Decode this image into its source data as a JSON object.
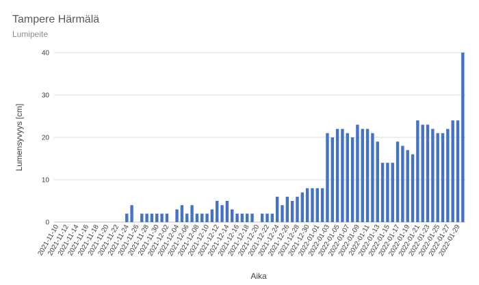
{
  "chart_data": {
    "type": "bar",
    "title": "Tampere Härmälä",
    "subtitle": "Lumipeite",
    "xlabel": "Aika",
    "ylabel": "Lumensyvyys [cm]",
    "ylim": [
      0,
      40
    ],
    "yticks": [
      0,
      10,
      20,
      30,
      40
    ],
    "grid": true,
    "legend": "none",
    "bar_color": "#4472c4",
    "categories": [
      "2021-11-10",
      "2021-11-11",
      "2021-11-12",
      "2021-11-13",
      "2021-11-14",
      "2021-11-15",
      "2021-11-16",
      "2021-11-17",
      "2021-11-18",
      "2021-11-19",
      "2021-11-20",
      "2021-11-21",
      "2021-11-22",
      "2021-11-23",
      "2021-11-24",
      "2021-11-25",
      "2021-11-26",
      "2021-11-27",
      "2021-11-28",
      "2021-11-29",
      "2021-11-30",
      "2021-12-01",
      "2021-12-02",
      "2021-12-03",
      "2021-12-04",
      "2021-12-05",
      "2021-12-06",
      "2021-12-07",
      "2021-12-08",
      "2021-12-09",
      "2021-12-10",
      "2021-12-11",
      "2021-12-12",
      "2021-12-13",
      "2021-12-14",
      "2021-12-15",
      "2021-12-16",
      "2021-12-17",
      "2021-12-18",
      "2021-12-19",
      "2021-12-20",
      "2021-12-21",
      "2021-12-22",
      "2021-12-23",
      "2021-12-24",
      "2021-12-25",
      "2021-12-26",
      "2021-12-27",
      "2021-12-28",
      "2021-12-29",
      "2021-12-30",
      "2021-12-31",
      "2022-01-01",
      "2022-01-02",
      "2022-01-03",
      "2022-01-04",
      "2022-01-05",
      "2022-01-06",
      "2022-01-07",
      "2022-01-08",
      "2022-01-09",
      "2022-01-10",
      "2022-01-11",
      "2022-01-12",
      "2022-01-13",
      "2022-01-14",
      "2022-01-15",
      "2022-01-16",
      "2022-01-17",
      "2022-01-18",
      "2022-01-19",
      "2022-01-20",
      "2022-01-21",
      "2022-01-22",
      "2022-01-23",
      "2022-01-24",
      "2022-01-25",
      "2022-01-26",
      "2022-01-27",
      "2022-01-28",
      "2022-01-29",
      "2022-01-30"
    ],
    "tick_labels": [
      "2021-11-10",
      "2021-11-12",
      "2021-11-14",
      "2021-11-16",
      "2021-11-18",
      "2021-11-20",
      "2021-11-22",
      "2021-11-24",
      "2021-11-26",
      "2021-11-28",
      "2021-11-30",
      "2021-12-02",
      "2021-12-04",
      "2021-12-06",
      "2021-12-08",
      "2021-12-10",
      "2021-12-12",
      "2021-12-14",
      "2021-12-16",
      "2021-12-18",
      "2021-12-20",
      "2021-12-22",
      "2021-12-24",
      "2021-12-26",
      "2021-12-28",
      "2021-12-30",
      "2022-01-01",
      "2022-01-03",
      "2022-01-05",
      "2022-01-07",
      "2022-01-09",
      "2022-01-11",
      "2022-01-13",
      "2022-01-15",
      "2022-01-17",
      "2022-01-19",
      "2022-01-21",
      "2022-01-23",
      "2022-01-25",
      "2022-01-27",
      "2022-01-29"
    ],
    "values": [
      0,
      0,
      0,
      0,
      0,
      0,
      0,
      0,
      0,
      0,
      0,
      0,
      0,
      0,
      2,
      4,
      0,
      2,
      2,
      2,
      2,
      2,
      2,
      0,
      3,
      4,
      2,
      4,
      2,
      2,
      2,
      3,
      5,
      4,
      5,
      3,
      2,
      2,
      2,
      2,
      0,
      2,
      2,
      2,
      6,
      4,
      6,
      5,
      6,
      7,
      8,
      8,
      8,
      8,
      21,
      20,
      22,
      22,
      21,
      20,
      23,
      22,
      22,
      21,
      19,
      14,
      14,
      14,
      19,
      18,
      17,
      16,
      24,
      23,
      23,
      22,
      21,
      21,
      22,
      24,
      24,
      40
    ]
  }
}
